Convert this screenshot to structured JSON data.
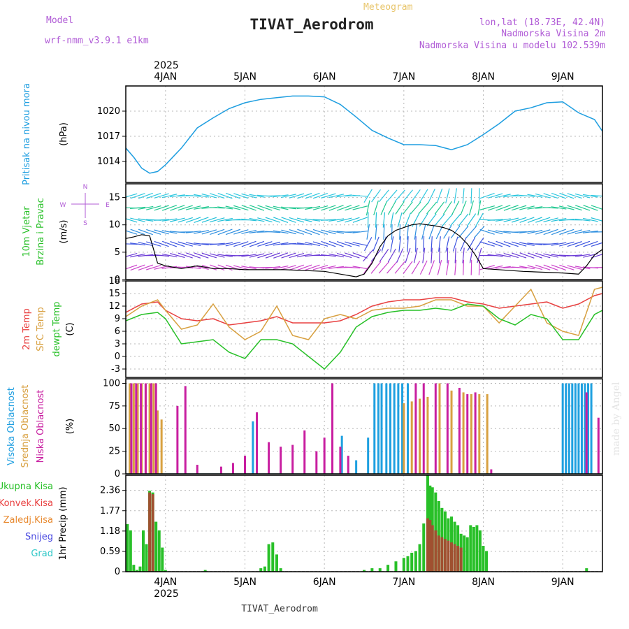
{
  "header": {
    "model_label": "Model",
    "model_name": "wrf-nmm_v3.9.1 e1km",
    "meteogram": "Meteogram",
    "station": "TIVAT_Aerodrom",
    "lonlat": "lon,lat (18.73E, 42.4N)",
    "elevation": "Nadmorska Visina 2m",
    "model_elevation": "Nadmorska Visina u modelu 102.539m",
    "footer": "TIVAT_Aerodrom",
    "credit": "made by Angel",
    "colors": {
      "model": "#b05bd6",
      "meteogram": "#e8c56a",
      "title": "#222222"
    }
  },
  "chart_data": [
    {
      "id": "pressure",
      "type": "line",
      "ylabel": [
        "Pritisak na nivou mora",
        "(hPa)"
      ],
      "yticks": [
        1014,
        1017,
        1020
      ],
      "ylim": [
        1011.5,
        1023
      ],
      "x_unit": "days since 2025-01-03 00:00",
      "x": [
        3.5,
        3.6,
        3.7,
        3.8,
        3.9,
        4.0,
        4.2,
        4.4,
        4.6,
        4.8,
        5.0,
        5.2,
        5.4,
        5.6,
        5.8,
        6.0,
        6.2,
        6.4,
        6.6,
        6.8,
        7.0,
        7.2,
        7.4,
        7.6,
        7.8,
        8.0,
        8.2,
        8.4,
        8.6,
        8.8,
        9.0,
        9.2,
        9.4,
        9.5
      ],
      "series": [
        {
          "name": "",
          "color": "#1e9ee0",
          "values": [
            1015.6,
            1014.5,
            1013.2,
            1012.6,
            1012.8,
            1013.6,
            1015.6,
            1018.0,
            1019.2,
            1020.3,
            1021.0,
            1021.4,
            1021.6,
            1021.8,
            1021.8,
            1021.7,
            1020.8,
            1019.3,
            1017.7,
            1016.8,
            1016.0,
            1016.0,
            1015.9,
            1015.4,
            1016.0,
            1017.2,
            1018.5,
            1020.0,
            1020.4,
            1021.0,
            1021.1,
            1019.8,
            1019.0,
            1017.6
          ]
        }
      ]
    },
    {
      "id": "wind",
      "type": "line",
      "ylabel": [
        "10m Vjetar",
        "Brzina i Pravac",
        "(m/s)"
      ],
      "yticks": [
        0,
        5,
        10,
        15
      ],
      "ylim": [
        0,
        17.5
      ],
      "compass": {
        "n": "N",
        "w": "W",
        "e": "E",
        "s": "S"
      },
      "speed_line": {
        "color": "#000000",
        "x": [
          3.5,
          3.6,
          3.7,
          3.8,
          3.9,
          4.0,
          4.2,
          4.4,
          4.6,
          4.8,
          5.0,
          5.5,
          6.0,
          6.2,
          6.4,
          6.5,
          6.6,
          6.7,
          6.8,
          6.9,
          7.0,
          7.1,
          7.2,
          7.3,
          7.4,
          7.5,
          7.6,
          7.7,
          7.8,
          7.9,
          8.0,
          8.5,
          9.0,
          9.2,
          9.3,
          9.4,
          9.5
        ],
        "values": [
          7.5,
          7.8,
          8.2,
          8.0,
          3.0,
          2.5,
          2.0,
          2.5,
          2.0,
          2.0,
          1.8,
          1.8,
          1.5,
          1.0,
          0.5,
          1.0,
          3.0,
          6.0,
          8.0,
          9.0,
          9.5,
          10.0,
          10.2,
          10.0,
          9.8,
          9.5,
          9.0,
          8.0,
          6.5,
          4.5,
          2.0,
          1.5,
          1.2,
          1.0,
          2.5,
          4.5,
          5.5
        ]
      },
      "arrow_rows": [
        {
          "speed": 2.2,
          "color": "#cc44cc"
        },
        {
          "speed": 4.4,
          "color": "#6a3ad6"
        },
        {
          "speed": 6.5,
          "color": "#3c54e0"
        },
        {
          "speed": 8.7,
          "color": "#2e8fe0"
        },
        {
          "speed": 10.9,
          "color": "#22c0d8"
        },
        {
          "speed": 13.1,
          "color": "#20c890"
        },
        {
          "speed": 15.3,
          "color": "#30c8e0"
        }
      ]
    },
    {
      "id": "temperature",
      "type": "line",
      "ylabel": [
        "2m Temp",
        "SFC Temp",
        "dewpt Temp",
        "(C)"
      ],
      "yticks": [
        -3,
        0,
        3,
        6,
        9,
        12,
        15,
        18
      ],
      "ylim": [
        -5,
        18
      ],
      "x": [
        3.5,
        3.7,
        3.9,
        4.0,
        4.2,
        4.4,
        4.6,
        4.8,
        5.0,
        5.2,
        5.4,
        5.6,
        5.8,
        6.0,
        6.2,
        6.4,
        6.6,
        6.8,
        7.0,
        7.2,
        7.4,
        7.6,
        7.8,
        8.0,
        8.2,
        8.4,
        8.6,
        8.8,
        9.0,
        9.2,
        9.4,
        9.5
      ],
      "series": [
        {
          "name": "2m Temp",
          "color": "#e84040",
          "values": [
            10.5,
            12.5,
            13.0,
            11.0,
            9.0,
            8.5,
            9.0,
            7.5,
            8.0,
            8.5,
            9.5,
            8.0,
            8.0,
            8.0,
            8.5,
            10.0,
            12.0,
            13.0,
            13.5,
            13.5,
            14.0,
            14.0,
            13.0,
            12.5,
            11.5,
            12.0,
            12.5,
            13.0,
            11.5,
            12.5,
            14.5,
            15.0
          ]
        },
        {
          "name": "SFC Temp",
          "color": "#d8a040",
          "values": [
            9.5,
            12.0,
            13.5,
            11.0,
            6.5,
            7.5,
            12.5,
            7.0,
            4.0,
            6.0,
            12.0,
            5.0,
            4.0,
            9.0,
            10.0,
            9.0,
            11.0,
            11.5,
            11.5,
            12.0,
            13.5,
            13.5,
            12.0,
            12.0,
            8.0,
            12.0,
            16.0,
            8.0,
            6.0,
            5.0,
            16.0,
            16.5
          ]
        },
        {
          "name": "dewpt Temp",
          "color": "#28c028",
          "values": [
            8.5,
            10.0,
            10.5,
            9.0,
            3.0,
            3.5,
            4.0,
            1.0,
            -0.5,
            4.0,
            4.0,
            3.0,
            0.0,
            -3.0,
            1.0,
            7.0,
            9.5,
            10.5,
            11.0,
            11.0,
            11.5,
            11.0,
            12.5,
            12.0,
            9.0,
            7.5,
            10.0,
            9.0,
            4.0,
            4.0,
            10.0,
            11.0
          ]
        }
      ]
    },
    {
      "id": "clouds",
      "type": "bar",
      "ylabel": [
        "Visoka Oblacnost",
        "Srednja Oblacnost",
        "Niska Oblacnost",
        "(%)"
      ],
      "yticks": [
        0,
        25,
        50,
        75,
        100
      ],
      "ylim": [
        0,
        105
      ],
      "series": [
        {
          "name": "Visoka Oblacnost",
          "color": "#1ea0e0",
          "x": [
            5.1,
            6.22,
            6.4,
            6.55,
            6.63,
            6.68,
            6.72,
            6.78,
            6.83,
            6.88,
            6.93,
            6.98,
            7.05,
            9.0,
            9.04,
            9.08,
            9.12,
            9.16,
            9.2,
            9.24,
            9.28,
            9.32,
            9.36
          ],
          "values": [
            58,
            42,
            15,
            40,
            100,
            100,
            100,
            100,
            100,
            100,
            100,
            100,
            100,
            100,
            100,
            100,
            100,
            100,
            100,
            100,
            100,
            100,
            100
          ]
        },
        {
          "name": "Srednja Oblacnost",
          "color": "#d8a040",
          "x": [
            3.55,
            3.6,
            3.65,
            3.7,
            3.75,
            3.8,
            3.85,
            3.9,
            3.95,
            7.0,
            7.1,
            7.2,
            7.3,
            7.45,
            7.6,
            7.75,
            7.85,
            7.95,
            8.05
          ],
          "values": [
            100,
            100,
            100,
            100,
            100,
            100,
            100,
            70,
            60,
            78,
            80,
            83,
            85,
            100,
            92,
            90,
            88,
            88,
            88
          ]
        },
        {
          "name": "Niska Oblacnost",
          "color": "#c81ea0",
          "x": [
            3.57,
            3.63,
            3.69,
            3.75,
            3.82,
            3.88,
            4.15,
            4.25,
            4.4,
            4.7,
            4.85,
            5.0,
            5.15,
            5.3,
            5.45,
            5.6,
            5.75,
            5.9,
            6.0,
            6.1,
            6.2,
            6.3,
            7.15,
            7.25,
            7.4,
            7.55,
            7.7,
            7.8,
            7.9,
            8.1,
            9.3,
            9.45
          ],
          "values": [
            100,
            100,
            100,
            100,
            100,
            100,
            75,
            97,
            10,
            8,
            12,
            20,
            68,
            35,
            30,
            32,
            48,
            25,
            40,
            100,
            30,
            20,
            100,
            100,
            100,
            100,
            95,
            88,
            90,
            5,
            90,
            62
          ]
        }
      ]
    },
    {
      "id": "precip",
      "type": "bar",
      "ylabel": [
        "1hr Precip (mm)"
      ],
      "yticks": [
        0,
        0.59,
        1.18,
        1.77,
        2.36
      ],
      "ylim": [
        0,
        2.8
      ],
      "legend": [
        {
          "name": "Ukupna Kisa",
          "color": "#28c028"
        },
        {
          "name": "Konvek.Kisa",
          "color": "#e84040"
        },
        {
          "name": "Zaledj.Kisa",
          "color": "#e88a30"
        },
        {
          "name": "Snijeg",
          "color": "#4848e0"
        },
        {
          "name": "Grad",
          "color": "#30c8c8"
        }
      ],
      "series": [
        {
          "name": "Ukupna Kisa",
          "color": "#28c028",
          "x": [
            3.52,
            3.56,
            3.6,
            3.64,
            3.68,
            3.72,
            3.76,
            3.8,
            3.84,
            3.88,
            3.92,
            3.96,
            4.0,
            4.5,
            5.2,
            5.25,
            5.3,
            5.35,
            5.4,
            5.45,
            6.5,
            6.6,
            6.7,
            6.8,
            6.9,
            7.0,
            7.05,
            7.1,
            7.15,
            7.2,
            7.25,
            7.3,
            7.33,
            7.36,
            7.4,
            7.44,
            7.48,
            7.52,
            7.56,
            7.6,
            7.64,
            7.68,
            7.72,
            7.76,
            7.8,
            7.84,
            7.88,
            7.92,
            7.96,
            8.0,
            8.04,
            9.3
          ],
          "values": [
            1.38,
            1.2,
            0.2,
            0.05,
            0.15,
            1.2,
            0.8,
            2.35,
            2.3,
            1.45,
            1.2,
            0.7,
            0.05,
            0.05,
            0.1,
            0.15,
            0.8,
            0.85,
            0.5,
            0.1,
            0.05,
            0.1,
            0.1,
            0.2,
            0.3,
            0.4,
            0.45,
            0.55,
            0.6,
            0.8,
            1.4,
            2.95,
            2.5,
            2.45,
            2.3,
            2.05,
            1.85,
            1.75,
            1.55,
            1.6,
            1.45,
            1.35,
            1.1,
            1.05,
            1.0,
            1.35,
            1.3,
            1.35,
            1.2,
            0.75,
            0.6,
            0.1
          ]
        },
        {
          "name": "Konvek.Kisa",
          "color": "#a05030",
          "x": [
            3.8,
            3.84,
            7.3,
            7.33,
            7.36,
            7.4,
            7.44,
            7.48,
            7.52,
            7.56,
            7.6,
            7.64,
            7.68,
            7.72
          ],
          "values": [
            2.3,
            2.25,
            1.55,
            1.5,
            1.35,
            1.2,
            1.05,
            1.0,
            0.95,
            0.9,
            0.85,
            0.8,
            0.75,
            0.7
          ]
        }
      ]
    }
  ],
  "dates_top": [
    "4JAN",
    "5JAN",
    "6JAN",
    "7JAN",
    "8JAN",
    "9JAN"
  ],
  "dates_bottom": [
    "4JAN",
    "5JAN",
    "6JAN",
    "7JAN",
    "8JAN",
    "9JAN"
  ],
  "year": "2025",
  "x_axis": {
    "xlim": [
      3.5,
      9.5
    ],
    "ticks": [
      4,
      5,
      6,
      7,
      8,
      9
    ]
  }
}
